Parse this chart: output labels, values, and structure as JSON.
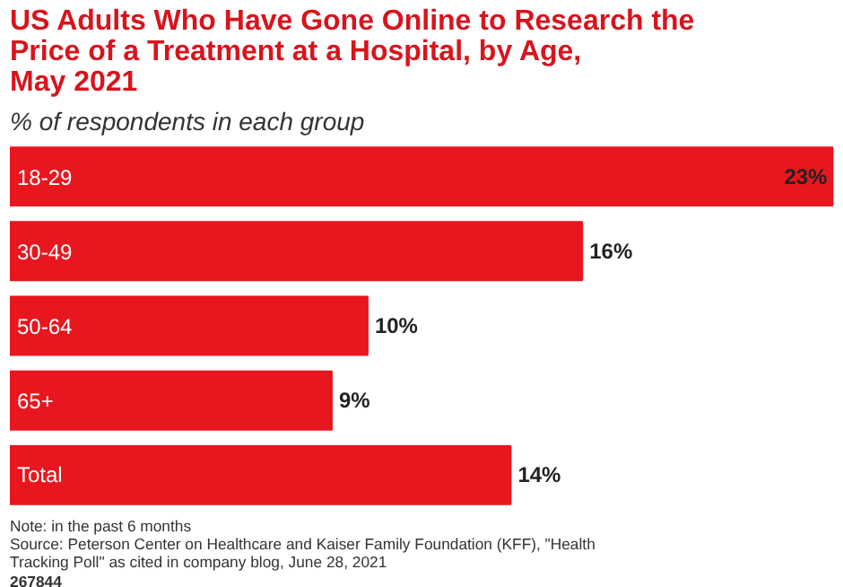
{
  "chart_data": {
    "type": "bar",
    "orientation": "horizontal",
    "title": "US Adults Who Have Gone Online to Research the\nPrice of a Treatment at a Hospital, by Age,\nMay 2021",
    "subtitle": "% of respondents in each group",
    "categories": [
      "18-29",
      "30-49",
      "50-64",
      "65+",
      "Total"
    ],
    "values": [
      23,
      16,
      10,
      9,
      14
    ],
    "value_labels": [
      "23%",
      "16%",
      "10%",
      "9%",
      "14%"
    ],
    "color": "#e8161e",
    "grid": false,
    "annotations": [
      "Note: in the past 6 months\nSource: Peterson Center on Healthcare and Kaiser Family Foundation (KFF), \"Health\nTracking Poll\" as cited in company blog, June 28, 2021",
      "267844"
    ]
  }
}
